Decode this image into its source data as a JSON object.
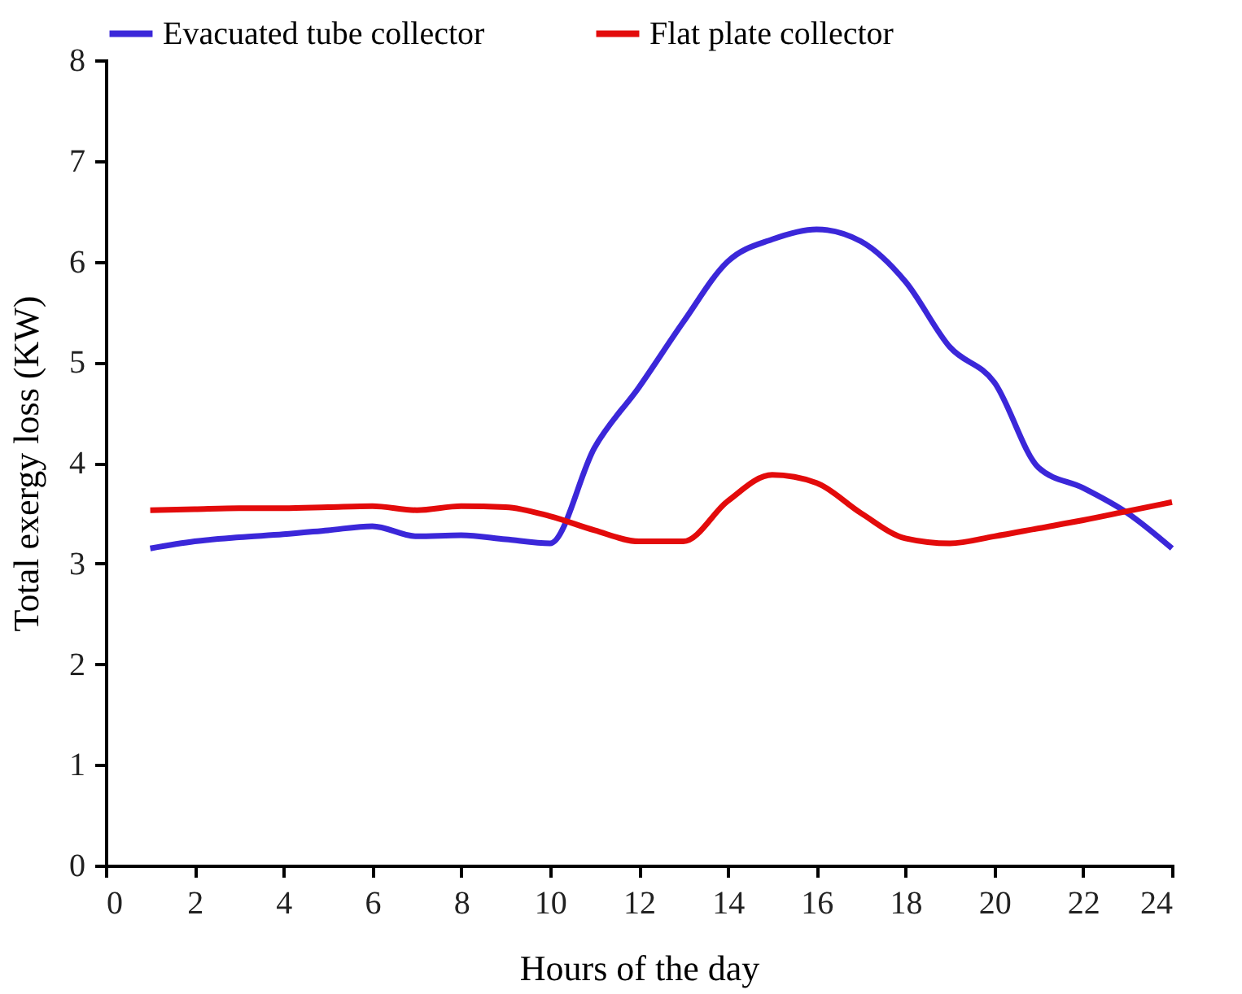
{
  "chart_data": {
    "type": "line",
    "xlabel": "Hours of the day",
    "ylabel": "Total exergy loss (KW)",
    "x": [
      1,
      2,
      3,
      4,
      5,
      6,
      7,
      8,
      9,
      10,
      11,
      12,
      13,
      14,
      15,
      16,
      17,
      18,
      19,
      20,
      21,
      22,
      23,
      24
    ],
    "series": [
      {
        "name": "Evacuated tube collector",
        "color": "#3b27d9",
        "values": [
          3.15,
          3.22,
          3.26,
          3.29,
          3.33,
          3.37,
          3.27,
          3.28,
          3.24,
          3.2,
          4.15,
          4.75,
          5.4,
          6.0,
          6.22,
          6.32,
          6.2,
          5.8,
          5.15,
          4.8,
          3.95,
          3.75,
          3.5,
          3.15
        ]
      },
      {
        "name": "Flat plate collector",
        "color": "#e30b0b",
        "values": [
          3.53,
          3.54,
          3.55,
          3.55,
          3.56,
          3.57,
          3.53,
          3.57,
          3.56,
          3.47,
          3.33,
          3.22,
          3.22,
          3.62,
          3.88,
          3.8,
          3.5,
          3.25,
          3.2,
          3.27,
          3.35,
          3.43,
          3.52,
          3.61
        ]
      }
    ],
    "xlim": [
      0,
      24
    ],
    "xticks": [
      0,
      2,
      4,
      6,
      8,
      10,
      12,
      14,
      16,
      18,
      20,
      22,
      24
    ],
    "ylim": [
      0,
      8
    ],
    "yticks": [
      0,
      1,
      2,
      3,
      4,
      5,
      6,
      7,
      8
    ],
    "grid": false,
    "legend": "top",
    "marker": "none",
    "line_style": "solid"
  }
}
